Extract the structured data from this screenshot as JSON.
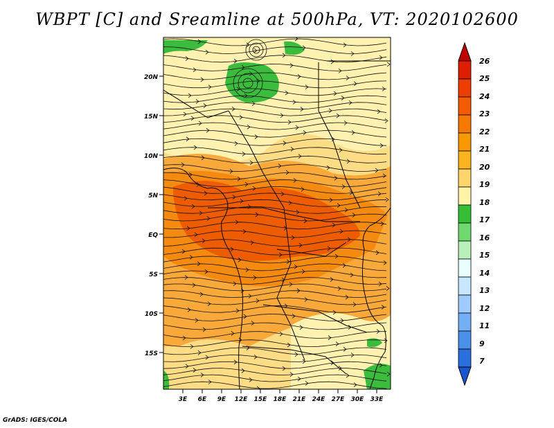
{
  "title": "WBPT [C] and Sreamline at 500hPa, VT: 2020102600",
  "footer": "GrADS: IGES/COLA",
  "map": {
    "lat_labels": [
      "20N",
      "15N",
      "10N",
      "5N",
      "EQ",
      "5S",
      "10S",
      "15S"
    ],
    "lon_labels": [
      "3E",
      "6E",
      "9E",
      "12E",
      "15E",
      "18E",
      "21E",
      "24E",
      "27E",
      "30E",
      "33E"
    ]
  },
  "colorbar": {
    "levels": [
      "26",
      "25",
      "24",
      "23",
      "22",
      "21",
      "20",
      "19",
      "18",
      "17",
      "16",
      "15",
      "14",
      "13",
      "12",
      "11",
      "9",
      "7"
    ],
    "colors": [
      "#c00000",
      "#dd1f00",
      "#ee3d00",
      "#f45b00",
      "#f77a00",
      "#f99900",
      "#fbb320",
      "#fdd56a",
      "#fff3a8",
      "#37be37",
      "#6fd86f",
      "#b9f0b9",
      "#e8fffb",
      "#c6e7ff",
      "#9fcbff",
      "#74aef4",
      "#4a8fe8",
      "#2a6fde",
      "#1a55d0"
    ]
  },
  "colors": {
    "warm_core": "#ee5c00",
    "orange": "#f58a10",
    "light_orange": "#f9a93a",
    "pale": "#fddc86",
    "cream": "#fff2b0",
    "green": "#3cbc3c"
  }
}
